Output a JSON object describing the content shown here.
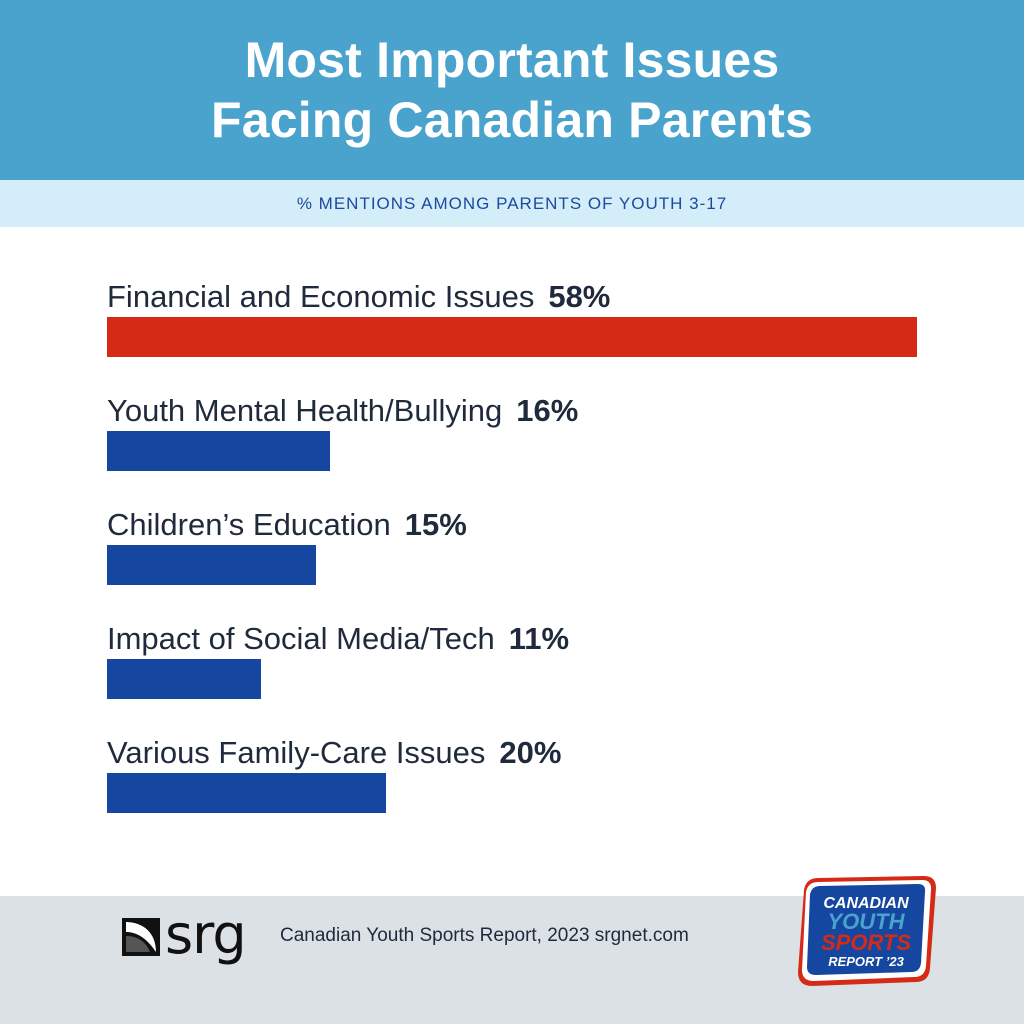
{
  "header": {
    "title_line1": "Most Important Issues",
    "title_line2": "Facing Canadian Parents",
    "subtitle": "% MENTIONS AMONG PARENTS OF YOUTH 3-17"
  },
  "chart_data": {
    "type": "bar",
    "orientation": "horizontal",
    "categories": [
      "Financial and Economic Issues",
      "Youth Mental Health/Bullying",
      "Children’s Education",
      "Impact of Social Media/Tech",
      "Various Family-Care Issues"
    ],
    "values": [
      58,
      16,
      15,
      11,
      20
    ],
    "value_labels": [
      "58%",
      "16%",
      "15%",
      "11%",
      "20%"
    ],
    "bar_colors": [
      "#d52b16",
      "#1546a0",
      "#1546a0",
      "#1546a0",
      "#1546a0"
    ],
    "xlim": [
      0,
      58
    ],
    "grid": false,
    "legend": "none"
  },
  "footer": {
    "logo_text": "srg",
    "source": "Canadian Youth Sports Report, 2023  srgnet.com",
    "badge_lines": [
      "CANADIAN",
      "YOUTH",
      "SPORTS",
      "REPORT ’23"
    ]
  },
  "colors": {
    "header_bg": "#4aa3cc",
    "subheader_bg": "#d3eef8",
    "highlight_bar": "#d52b16",
    "bar": "#1546a0",
    "footer_bg": "#dce1e6"
  }
}
